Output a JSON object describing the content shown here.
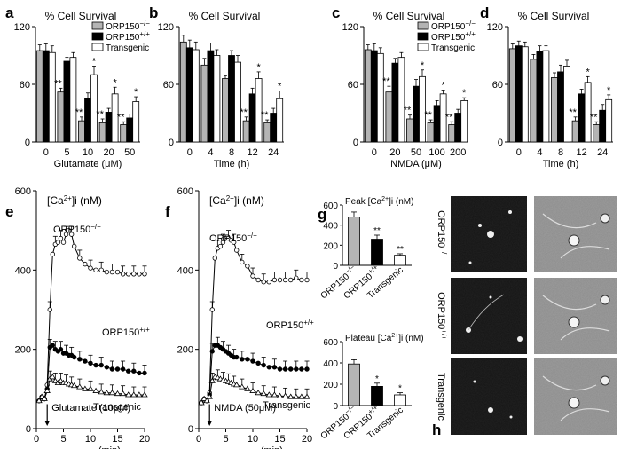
{
  "figure": {
    "panel_letters": [
      "a",
      "b",
      "c",
      "d",
      "e",
      "f",
      "g",
      "h"
    ],
    "legend": [
      {
        "label": "ORP150",
        "sup": "−/−",
        "color": "#b4b4b4"
      },
      {
        "label": "ORP150",
        "sup": "+/+",
        "color": "#000000"
      },
      {
        "label": "Transgenic",
        "sup": "",
        "color": "#ffffff"
      }
    ],
    "survival_title": "% Cell Survival"
  },
  "chart_data": [
    {
      "panel": "a",
      "type": "bar",
      "title": "% Cell Survival",
      "xlabel": "Glutamate (μM)",
      "ylim": [
        0,
        120
      ],
      "yticks": [
        0,
        60,
        120
      ],
      "categories": [
        "0",
        "5",
        "10",
        "20",
        "50"
      ],
      "series": [
        {
          "name": "ORP150−/−",
          "values": [
            95,
            52,
            22,
            20,
            18
          ],
          "err": [
            6,
            4,
            4,
            4,
            3
          ],
          "sig": [
            "",
            "**",
            "**",
            "**",
            "**"
          ]
        },
        {
          "name": "ORP150+/+",
          "values": [
            95,
            84,
            45,
            31,
            25
          ],
          "err": [
            7,
            4,
            6,
            4,
            4
          ],
          "sig": [
            "",
            "",
            "",
            "",
            ""
          ]
        },
        {
          "name": "Transgenic",
          "values": [
            93,
            88,
            70,
            50,
            42
          ],
          "err": [
            7,
            5,
            9,
            7,
            5
          ],
          "sig": [
            "",
            "",
            "*",
            "*",
            "*"
          ]
        }
      ]
    },
    {
      "panel": "b",
      "type": "bar",
      "title": "% Cell Survival",
      "xlabel": "Time (h)",
      "ylim": [
        0,
        120
      ],
      "yticks": [
        0,
        60,
        120
      ],
      "categories": [
        "0",
        "4",
        "8",
        "12",
        "24"
      ],
      "series": [
        {
          "name": "ORP150−/−",
          "values": [
            104,
            80,
            66,
            22,
            20
          ],
          "err": [
            7,
            7,
            3,
            4,
            3
          ],
          "sig": [
            "",
            "",
            "",
            "**",
            "**"
          ]
        },
        {
          "name": "ORP150+/+",
          "values": [
            98,
            95,
            90,
            50,
            30
          ],
          "err": [
            8,
            8,
            5,
            6,
            5
          ],
          "sig": [
            "",
            "",
            "",
            "",
            ""
          ]
        },
        {
          "name": "Transgenic",
          "values": [
            96,
            90,
            83,
            66,
            45
          ],
          "err": [
            8,
            6,
            7,
            7,
            8
          ],
          "sig": [
            "",
            "",
            "",
            "*",
            "*"
          ]
        }
      ]
    },
    {
      "panel": "c",
      "type": "bar",
      "title": "% Cell Survival",
      "xlabel": "NMDA (μM)",
      "ylim": [
        0,
        120
      ],
      "yticks": [
        0,
        60,
        120
      ],
      "categories": [
        "0",
        "20",
        "50",
        "100",
        "200"
      ],
      "series": [
        {
          "name": "ORP150−/−",
          "values": [
            96,
            52,
            24,
            20,
            18
          ],
          "err": [
            5,
            6,
            4,
            3,
            3
          ],
          "sig": [
            "",
            "**",
            "**",
            "**",
            "**"
          ]
        },
        {
          "name": "ORP150+/+",
          "values": [
            95,
            82,
            58,
            38,
            30
          ],
          "err": [
            7,
            5,
            7,
            5,
            4
          ],
          "sig": [
            "",
            "",
            "",
            "",
            ""
          ]
        },
        {
          "name": "Transgenic",
          "values": [
            92,
            88,
            68,
            50,
            43
          ],
          "err": [
            6,
            5,
            7,
            4,
            3
          ],
          "sig": [
            "",
            "",
            "*",
            "*",
            "*"
          ]
        }
      ]
    },
    {
      "panel": "d",
      "type": "bar",
      "title": "% Cell Survival",
      "xlabel": "Time (h)",
      "ylim": [
        0,
        120
      ],
      "yticks": [
        0,
        60,
        120
      ],
      "categories": [
        "0",
        "4",
        "8",
        "12",
        "24"
      ],
      "series": [
        {
          "name": "ORP150−/−",
          "values": [
            97,
            86,
            67,
            22,
            18
          ],
          "err": [
            5,
            5,
            5,
            4,
            3
          ],
          "sig": [
            "",
            "",
            "",
            "**",
            "**"
          ]
        },
        {
          "name": "ORP150+/+",
          "values": [
            100,
            94,
            73,
            50,
            33
          ],
          "err": [
            5,
            6,
            7,
            5,
            6
          ],
          "sig": [
            "",
            "",
            "",
            "",
            ""
          ]
        },
        {
          "name": "Transgenic",
          "values": [
            99,
            95,
            79,
            62,
            44
          ],
          "err": [
            5,
            5,
            6,
            6,
            5
          ],
          "sig": [
            "",
            "",
            "",
            "*",
            "*"
          ]
        }
      ]
    },
    {
      "panel": "e",
      "type": "line",
      "title": "[Ca²⁺]i (nM)",
      "xlabel": "(min)",
      "xlim": [
        0,
        20
      ],
      "ylim": [
        0,
        600
      ],
      "xticks": [
        0,
        5,
        10,
        15,
        20
      ],
      "yticks": [
        0,
        200,
        400,
        600
      ],
      "stimulus": "Glutamate (10μM)",
      "stimulus_time": 2,
      "x": [
        0.5,
        1,
        1.5,
        2,
        2.5,
        3,
        3.5,
        4,
        4.5,
        5,
        5.5,
        6,
        6.5,
        7,
        8,
        9,
        10,
        11,
        12,
        13,
        14,
        15,
        16,
        17,
        18,
        19,
        20
      ],
      "series": [
        {
          "name": "ORP150−/−",
          "marker": "circle-open",
          "values": [
            70,
            80,
            75,
            110,
            300,
            440,
            465,
            470,
            480,
            470,
            490,
            500,
            490,
            460,
            430,
            415,
            405,
            400,
            400,
            395,
            395,
            395,
            390,
            390,
            390,
            390,
            390
          ]
        },
        {
          "name": "ORP150+/+",
          "marker": "circle-filled",
          "values": [
            70,
            80,
            75,
            100,
            205,
            210,
            200,
            195,
            200,
            190,
            190,
            185,
            185,
            180,
            175,
            170,
            165,
            160,
            160,
            155,
            150,
            150,
            150,
            145,
            145,
            140,
            140
          ]
        },
        {
          "name": "Transgenic",
          "marker": "triangle-open",
          "values": [
            70,
            80,
            75,
            95,
            125,
            130,
            120,
            115,
            120,
            115,
            115,
            112,
            110,
            108,
            105,
            100,
            100,
            95,
            92,
            90,
            90,
            88,
            88,
            85,
            85,
            85,
            85
          ]
        }
      ]
    },
    {
      "panel": "f",
      "type": "line",
      "title": "[Ca²⁺]i (nM)",
      "xlabel": "(min)",
      "xlim": [
        0,
        20
      ],
      "ylim": [
        0,
        600
      ],
      "xticks": [
        0,
        5,
        10,
        15,
        20
      ],
      "yticks": [
        0,
        200,
        400,
        600
      ],
      "stimulus": "NMDA (50μM)",
      "stimulus_time": 2,
      "x": [
        0.5,
        1,
        1.5,
        2,
        2.5,
        3,
        3.5,
        4,
        4.5,
        5,
        5.5,
        6,
        6.5,
        7,
        8,
        9,
        10,
        11,
        12,
        13,
        14,
        15,
        16,
        17,
        18,
        19,
        20
      ],
      "series": [
        {
          "name": "ORP150−/−",
          "marker": "circle-open",
          "values": [
            65,
            75,
            70,
            90,
            300,
            430,
            455,
            460,
            470,
            480,
            480,
            475,
            470,
            450,
            420,
            410,
            385,
            375,
            370,
            370,
            375,
            375,
            375,
            375,
            380,
            375,
            375
          ]
        },
        {
          "name": "ORP150+/+",
          "marker": "circle-filled",
          "values": [
            65,
            75,
            70,
            85,
            195,
            210,
            210,
            205,
            200,
            195,
            190,
            185,
            180,
            180,
            175,
            175,
            170,
            165,
            160,
            155,
            155,
            150,
            150,
            150,
            150,
            150,
            150
          ]
        },
        {
          "name": "Transgenic",
          "marker": "triangle-open",
          "values": [
            65,
            75,
            70,
            80,
            120,
            130,
            128,
            125,
            122,
            120,
            118,
            115,
            112,
            110,
            105,
            100,
            95,
            90,
            88,
            85,
            85,
            82,
            82,
            80,
            80,
            80,
            80
          ]
        }
      ]
    },
    {
      "panel": "g-top",
      "type": "bar",
      "title": "Peak [Ca²⁺]i (nM)",
      "ylim": [
        0,
        600
      ],
      "yticks": [
        0,
        200,
        400,
        600
      ],
      "categories": [
        "ORP150−/−",
        "ORP150+/+",
        "Transgenic"
      ],
      "values": [
        480,
        260,
        100
      ],
      "err": [
        50,
        40,
        15
      ],
      "sig": [
        "",
        "**",
        "**"
      ],
      "colors": [
        "#b4b4b4",
        "#000000",
        "#ffffff"
      ]
    },
    {
      "panel": "g-bottom",
      "type": "bar",
      "title": "Plateau [Ca²⁺]i (nM)",
      "ylim": [
        0,
        600
      ],
      "yticks": [
        0,
        200,
        400,
        600
      ],
      "categories": [
        "ORP150−/−",
        "ORP150+/+",
        "Transgenic"
      ],
      "values": [
        390,
        180,
        100
      ],
      "err": [
        40,
        30,
        20
      ],
      "sig": [
        "",
        "*",
        "*"
      ],
      "colors": [
        "#b4b4b4",
        "#000000",
        "#ffffff"
      ]
    }
  ],
  "panel_h": {
    "row_labels": [
      "ORP150−/−",
      "ORP150+/+",
      "Transgenic"
    ]
  }
}
